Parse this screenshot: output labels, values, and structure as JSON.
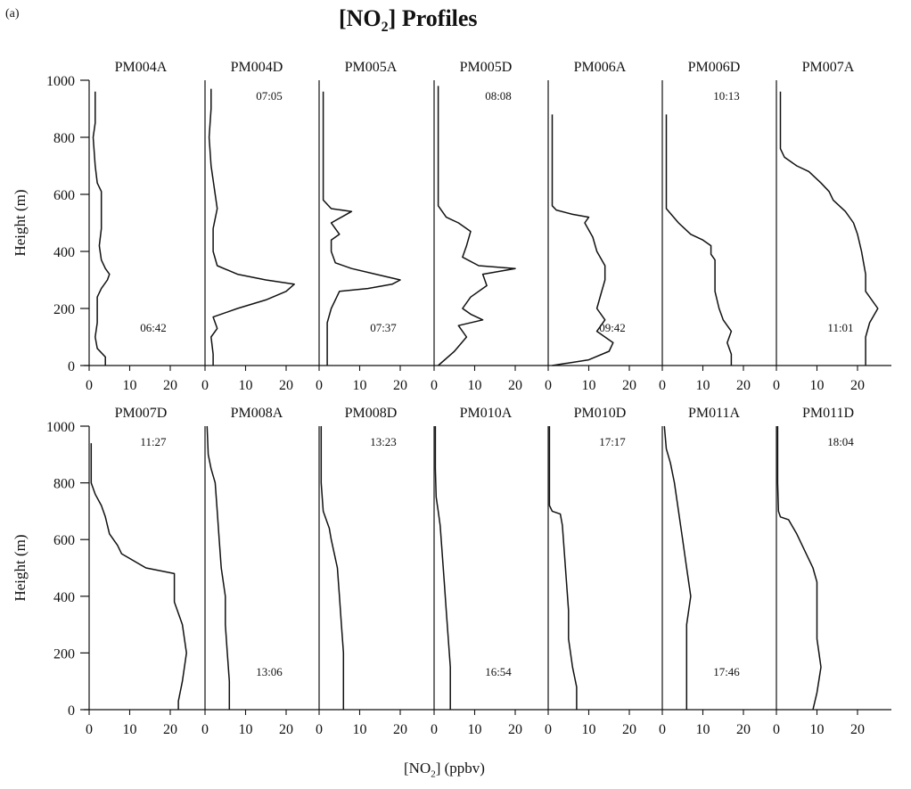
{
  "figure": {
    "panel_label": "(a)",
    "title_prefix": "[NO",
    "title_sub": "2",
    "title_suffix": "] Profiles",
    "xlabel_prefix": "[NO",
    "xlabel_sub": "2",
    "xlabel_suffix": "]  (ppbv)",
    "ylabel": "Height (m)"
  },
  "chart_data": {
    "type": "line",
    "title": "[NO2] Profiles",
    "xlabel": "[NO2]  (ppbv)",
    "ylabel": "Height (m)",
    "xlim": [
      0,
      28
    ],
    "ylim": [
      0,
      1000
    ],
    "x_ticks": [
      0,
      10,
      20
    ],
    "y_ticks": [
      0,
      200,
      400,
      600,
      800,
      1000
    ],
    "grid": false,
    "line_color": "#111111",
    "layout": "2 rows x 7 columns, shared axes",
    "panels": [
      {
        "name": "PM004A",
        "time": "06:42",
        "time_pos": "low",
        "profile": [
          [
            4,
            0
          ],
          [
            4,
            30
          ],
          [
            2,
            60
          ],
          [
            1.5,
            100
          ],
          [
            2,
            150
          ],
          [
            2,
            200
          ],
          [
            2,
            240
          ],
          [
            3,
            270
          ],
          [
            4.5,
            300
          ],
          [
            5,
            320
          ],
          [
            4,
            340
          ],
          [
            3,
            370
          ],
          [
            2.5,
            420
          ],
          [
            3,
            480
          ],
          [
            3,
            540
          ],
          [
            3,
            580
          ],
          [
            3,
            610
          ],
          [
            2,
            640
          ],
          [
            1.5,
            700
          ],
          [
            1,
            800
          ],
          [
            1.5,
            850
          ],
          [
            1.5,
            960
          ]
        ]
      },
      {
        "name": "PM004D",
        "time": "07:05",
        "time_pos": "high",
        "profile": [
          [
            2,
            0
          ],
          [
            2,
            40
          ],
          [
            1.5,
            100
          ],
          [
            3,
            130
          ],
          [
            2,
            170
          ],
          [
            8,
            200
          ],
          [
            15,
            230
          ],
          [
            20,
            260
          ],
          [
            22,
            285
          ],
          [
            15,
            300
          ],
          [
            8,
            320
          ],
          [
            3,
            350
          ],
          [
            2,
            400
          ],
          [
            2,
            480
          ],
          [
            3,
            550
          ],
          [
            2.5,
            600
          ],
          [
            2,
            650
          ],
          [
            1.5,
            700
          ],
          [
            1,
            800
          ],
          [
            1.5,
            900
          ],
          [
            1.5,
            970
          ]
        ]
      },
      {
        "name": "PM005A",
        "time": "07:37",
        "time_pos": "low",
        "profile": [
          [
            2,
            0
          ],
          [
            2,
            80
          ],
          [
            2,
            150
          ],
          [
            3,
            200
          ],
          [
            4,
            230
          ],
          [
            5,
            260
          ],
          [
            12,
            270
          ],
          [
            18,
            285
          ],
          [
            20,
            300
          ],
          [
            14,
            320
          ],
          [
            8,
            340
          ],
          [
            4,
            360
          ],
          [
            3,
            400
          ],
          [
            3,
            440
          ],
          [
            5,
            460
          ],
          [
            4,
            480
          ],
          [
            3,
            500
          ],
          [
            8,
            540
          ],
          [
            3,
            550
          ],
          [
            1,
            580
          ],
          [
            1,
            700
          ],
          [
            1,
            960
          ]
        ]
      },
      {
        "name": "PM005D",
        "time": "08:08",
        "time_pos": "high",
        "profile": [
          [
            1,
            0
          ],
          [
            5,
            50
          ],
          [
            8,
            100
          ],
          [
            6,
            140
          ],
          [
            12,
            160
          ],
          [
            9,
            180
          ],
          [
            7,
            200
          ],
          [
            9,
            240
          ],
          [
            13,
            280
          ],
          [
            12,
            320
          ],
          [
            20,
            340
          ],
          [
            11,
            350
          ],
          [
            7,
            380
          ],
          [
            8,
            420
          ],
          [
            9,
            470
          ],
          [
            6,
            500
          ],
          [
            3,
            520
          ],
          [
            1,
            560
          ],
          [
            1,
            600
          ],
          [
            1,
            980
          ]
        ]
      },
      {
        "name": "PM006A",
        "time": "09:42",
        "time_pos": "low",
        "profile": [
          [
            1,
            0
          ],
          [
            10,
            20
          ],
          [
            15,
            50
          ],
          [
            16,
            80
          ],
          [
            12,
            120
          ],
          [
            14,
            160
          ],
          [
            12,
            200
          ],
          [
            13,
            250
          ],
          [
            14,
            300
          ],
          [
            14,
            350
          ],
          [
            12,
            400
          ],
          [
            11,
            450
          ],
          [
            9,
            500
          ],
          [
            10,
            520
          ],
          [
            6,
            530
          ],
          [
            2,
            545
          ],
          [
            1,
            560
          ],
          [
            1,
            600
          ],
          [
            1,
            880
          ]
        ]
      },
      {
        "name": "PM006D",
        "time": "10:13",
        "time_pos": "high",
        "profile": [
          [
            17,
            0
          ],
          [
            17,
            40
          ],
          [
            16,
            80
          ],
          [
            17,
            120
          ],
          [
            15,
            160
          ],
          [
            14,
            200
          ],
          [
            13,
            260
          ],
          [
            13,
            320
          ],
          [
            13,
            370
          ],
          [
            12,
            390
          ],
          [
            12,
            420
          ],
          [
            10,
            440
          ],
          [
            7,
            460
          ],
          [
            4,
            500
          ],
          [
            1,
            550
          ],
          [
            1,
            600
          ],
          [
            1,
            880
          ]
        ]
      },
      {
        "name": "PM007A",
        "time": "11:01",
        "time_pos": "low",
        "profile": [
          [
            22,
            0
          ],
          [
            22,
            40
          ],
          [
            22,
            100
          ],
          [
            23,
            150
          ],
          [
            25,
            200
          ],
          [
            22,
            260
          ],
          [
            22,
            320
          ],
          [
            21,
            400
          ],
          [
            20,
            460
          ],
          [
            19,
            500
          ],
          [
            17,
            540
          ],
          [
            14,
            580
          ],
          [
            13,
            610
          ],
          [
            11,
            640
          ],
          [
            8,
            680
          ],
          [
            5,
            700
          ],
          [
            2,
            730
          ],
          [
            1,
            760
          ],
          [
            1,
            800
          ],
          [
            1,
            960
          ]
        ]
      },
      {
        "name": "PM007D",
        "time": "11:27",
        "time_pos": "high",
        "profile": [
          [
            22,
            0
          ],
          [
            22,
            30
          ],
          [
            23,
            100
          ],
          [
            24,
            200
          ],
          [
            23,
            300
          ],
          [
            21,
            380
          ],
          [
            21,
            450
          ],
          [
            21,
            480
          ],
          [
            14,
            500
          ],
          [
            8,
            550
          ],
          [
            7,
            580
          ],
          [
            5,
            620
          ],
          [
            4,
            680
          ],
          [
            3,
            720
          ],
          [
            1.5,
            760
          ],
          [
            0.5,
            800
          ],
          [
            0.5,
            940
          ]
        ]
      },
      {
        "name": "PM008A",
        "time": "13:06",
        "time_pos": "low",
        "profile": [
          [
            6,
            0
          ],
          [
            6,
            50
          ],
          [
            6,
            100
          ],
          [
            5.5,
            200
          ],
          [
            5,
            300
          ],
          [
            5,
            400
          ],
          [
            4,
            500
          ],
          [
            3.5,
            600
          ],
          [
            3,
            700
          ],
          [
            2.5,
            800
          ],
          [
            1.5,
            850
          ],
          [
            0.8,
            900
          ],
          [
            0.5,
            1000
          ]
        ]
      },
      {
        "name": "PM008D",
        "time": "13:23",
        "time_pos": "high",
        "profile": [
          [
            6,
            0
          ],
          [
            6,
            100
          ],
          [
            6,
            200
          ],
          [
            5.5,
            300
          ],
          [
            5,
            400
          ],
          [
            4.5,
            500
          ],
          [
            3,
            600
          ],
          [
            2.5,
            640
          ],
          [
            2,
            660
          ],
          [
            1,
            700
          ],
          [
            0.5,
            800
          ],
          [
            0.5,
            1000
          ]
        ]
      },
      {
        "name": "PM010A",
        "time": "16:54",
        "time_pos": "low",
        "profile": [
          [
            4,
            0
          ],
          [
            4,
            80
          ],
          [
            4,
            150
          ],
          [
            3.5,
            250
          ],
          [
            3,
            350
          ],
          [
            2.5,
            450
          ],
          [
            2,
            550
          ],
          [
            1.5,
            650
          ],
          [
            1,
            700
          ],
          [
            0.5,
            750
          ],
          [
            0.3,
            850
          ],
          [
            0.3,
            1000
          ]
        ]
      },
      {
        "name": "PM010D",
        "time": "17:17",
        "time_pos": "high",
        "profile": [
          [
            7,
            0
          ],
          [
            7,
            80
          ],
          [
            6,
            150
          ],
          [
            5,
            250
          ],
          [
            5,
            350
          ],
          [
            4.5,
            450
          ],
          [
            4,
            550
          ],
          [
            3.5,
            650
          ],
          [
            3,
            690
          ],
          [
            1,
            700
          ],
          [
            0.3,
            720
          ],
          [
            0.3,
            1000
          ]
        ]
      },
      {
        "name": "PM011A",
        "time": "17:46",
        "time_pos": "low",
        "profile": [
          [
            6,
            0
          ],
          [
            6,
            100
          ],
          [
            6,
            200
          ],
          [
            6,
            300
          ],
          [
            7,
            400
          ],
          [
            6,
            500
          ],
          [
            5,
            600
          ],
          [
            4,
            700
          ],
          [
            3,
            800
          ],
          [
            2,
            870
          ],
          [
            1,
            920
          ],
          [
            0.5,
            1000
          ]
        ]
      },
      {
        "name": "PM011D",
        "time": "18:04",
        "time_pos": "high",
        "profile": [
          [
            9,
            0
          ],
          [
            10,
            60
          ],
          [
            11,
            150
          ],
          [
            10,
            250
          ],
          [
            10,
            350
          ],
          [
            10,
            450
          ],
          [
            9,
            500
          ],
          [
            7,
            560
          ],
          [
            5,
            620
          ],
          [
            3,
            670
          ],
          [
            1,
            680
          ],
          [
            0.5,
            700
          ],
          [
            0.3,
            800
          ],
          [
            0.3,
            1000
          ]
        ]
      }
    ]
  }
}
